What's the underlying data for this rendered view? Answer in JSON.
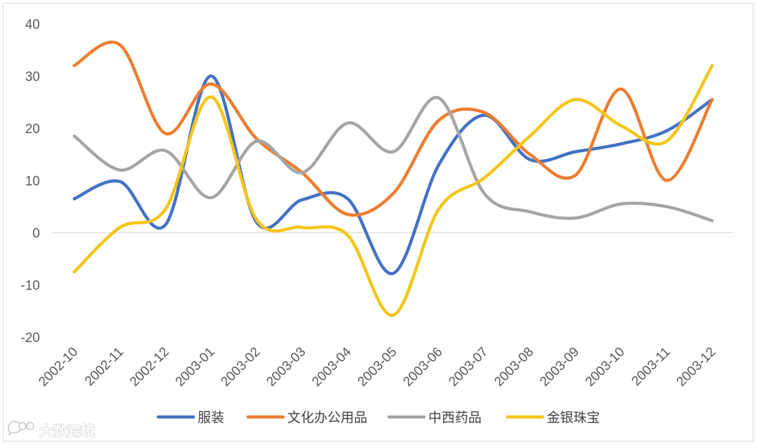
{
  "chart_data": {
    "type": "line",
    "smooth": true,
    "title": "",
    "xlabel": "",
    "ylabel": "",
    "ylim": [
      -20,
      40
    ],
    "yticks": [
      -20,
      -10,
      0,
      10,
      20,
      30,
      40
    ],
    "grid": false,
    "zero_line": true,
    "legend_position": "bottom",
    "categories": [
      "2002-10",
      "2002-11",
      "2002-12",
      "2003-01",
      "2003-02",
      "2003-03",
      "2003-04",
      "2003-05",
      "2003-06",
      "2003-07",
      "2003-08",
      "2003-09",
      "2003-10",
      "2003-11",
      "2003-12"
    ],
    "series": [
      {
        "name": "服装",
        "color": "#4472c4",
        "values": [
          6.5,
          9.8,
          1.5,
          30,
          2,
          6.3,
          6.5,
          -7.8,
          13,
          22.5,
          14,
          15.5,
          17,
          19.5,
          25.5
        ]
      },
      {
        "name": "文化办公用品",
        "color": "#ed7d31",
        "values": [
          32,
          36,
          19,
          28.5,
          18,
          11.5,
          3.5,
          7.5,
          21.5,
          23,
          15,
          11,
          27.5,
          10,
          25.5
        ]
      },
      {
        "name": "中西药品",
        "color": "#a5a5a5",
        "values": [
          18.5,
          12,
          15.7,
          6.7,
          17.5,
          11.5,
          21,
          15.5,
          25.8,
          7.5,
          4,
          2.8,
          5.5,
          5,
          2.3
        ]
      },
      {
        "name": "金银珠宝",
        "color": "#f5c518",
        "values": [
          -7.5,
          1,
          4.5,
          26,
          2.5,
          1,
          -0.5,
          -15.8,
          4.5,
          10.5,
          18.5,
          25.5,
          20.5,
          17.5,
          32
        ]
      }
    ]
  },
  "watermark": {
    "text": "大数跨境",
    "icon": "chat-bubble-logo-icon"
  }
}
